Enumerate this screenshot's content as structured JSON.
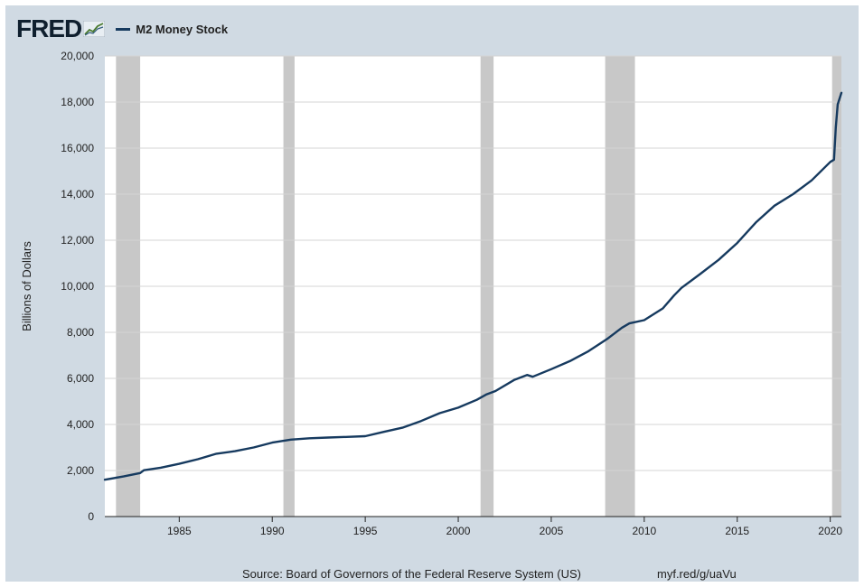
{
  "header": {
    "logo_text": "FRED",
    "logo_badge": "chart-trend-badge",
    "legend_label": "M2 Money Stock"
  },
  "footer": {
    "source": "Source: Board of Governors of the Federal Reserve System (US)",
    "link": "myf.red/g/uaVu"
  },
  "colors": {
    "frame_bg": "#d0dae3",
    "plot_bg": "#ffffff",
    "series": "#163a5f",
    "recession": "#c8c8c8",
    "grid": "#d4d4d4"
  },
  "chart_data": {
    "type": "line",
    "title": "",
    "xlabel": "",
    "ylabel": "Billions of Dollars",
    "xlim": [
      1981.0,
      2020.6
    ],
    "ylim": [
      0,
      20000
    ],
    "yticks": [
      0,
      2000,
      4000,
      6000,
      8000,
      10000,
      12000,
      14000,
      16000,
      18000,
      20000
    ],
    "ytick_labels": [
      "0",
      "2,000",
      "4,000",
      "6,000",
      "8,000",
      "10,000",
      "12,000",
      "14,000",
      "16,000",
      "18,000",
      "20,000"
    ],
    "xticks": [
      1985,
      1990,
      1995,
      2000,
      2005,
      2010,
      2015,
      2020
    ],
    "xtick_labels": [
      "1985",
      "1990",
      "1995",
      "2000",
      "2005",
      "2010",
      "2015",
      "2020"
    ],
    "grid": "horizontal",
    "legend_position": "top-left",
    "recessions": [
      [
        1981.6,
        1982.9
      ],
      [
        1990.6,
        1991.2
      ],
      [
        2001.2,
        2001.9
      ],
      [
        2007.9,
        2009.5
      ],
      [
        2020.1,
        2020.6
      ]
    ],
    "series": [
      {
        "name": "M2 Money Stock",
        "x": [
          1981.0,
          1982.0,
          1982.9,
          1983.1,
          1984.0,
          1985.0,
          1986.0,
          1987.0,
          1988.0,
          1989.0,
          1990.0,
          1991.0,
          1992.0,
          1993.0,
          1994.0,
          1995.0,
          1996.0,
          1997.0,
          1998.0,
          1999.0,
          2000.0,
          2001.0,
          2001.5,
          2002.0,
          2003.0,
          2003.7,
          2004.0,
          2005.0,
          2006.0,
          2007.0,
          2008.0,
          2008.8,
          2009.2,
          2010.0,
          2011.0,
          2011.6,
          2012.0,
          2013.0,
          2014.0,
          2015.0,
          2016.0,
          2017.0,
          2018.0,
          2019.0,
          2020.0,
          2020.2,
          2020.3,
          2020.4,
          2020.6
        ],
        "y": [
          1600,
          1740,
          1890,
          2010,
          2120,
          2290,
          2490,
          2730,
          2840,
          3000,
          3210,
          3340,
          3400,
          3430,
          3460,
          3490,
          3680,
          3860,
          4150,
          4490,
          4730,
          5070,
          5300,
          5450,
          5930,
          6150,
          6070,
          6400,
          6750,
          7180,
          7710,
          8200,
          8390,
          8530,
          9040,
          9600,
          9930,
          10530,
          11150,
          11880,
          12770,
          13500,
          14000,
          14600,
          15400,
          15500,
          16900,
          17900,
          18400
        ]
      }
    ]
  }
}
